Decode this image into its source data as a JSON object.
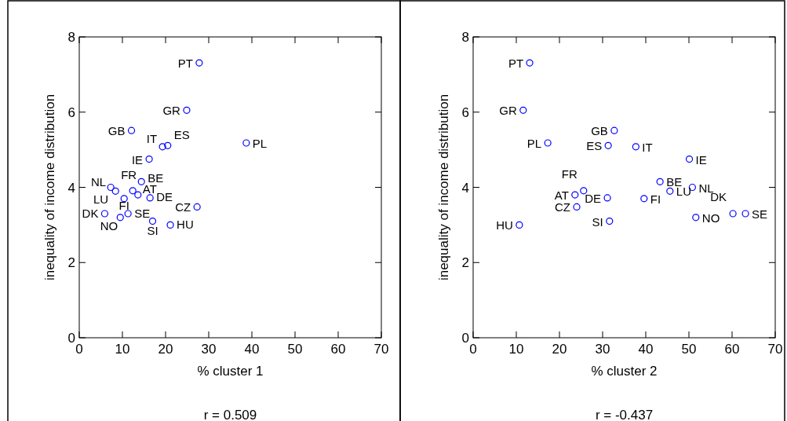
{
  "chart_data": [
    {
      "type": "scatter",
      "xlabel": "% cluster 1",
      "ylabel": "inequality of income distribution",
      "xlim": [
        0,
        70
      ],
      "ylim": [
        0,
        8
      ],
      "xticks": [
        0,
        10,
        20,
        30,
        40,
        50,
        60,
        70
      ],
      "yticks": [
        0,
        2,
        4,
        6,
        8
      ],
      "marker": "circle",
      "color": "#0000ff",
      "x": [
        27.8,
        24.9,
        12.1,
        38.7,
        20.5,
        19.3,
        16.2,
        12.4,
        14.4,
        7.3,
        8.4,
        13.6,
        16.4,
        10.4,
        27.3,
        17.0,
        21.1,
        9.5,
        5.9,
        11.3
      ],
      "values": [
        7.31,
        6.05,
        5.51,
        5.18,
        5.11,
        5.08,
        4.75,
        3.91,
        4.15,
        4.0,
        3.9,
        3.8,
        3.72,
        3.7,
        3.48,
        3.1,
        3.0,
        3.2,
        3.3,
        3.3
      ],
      "value_labels": [
        "PT",
        "GR",
        "GB",
        "PL",
        "ES",
        "IT",
        "IE",
        "FR",
        "BE",
        "NL",
        "LU",
        "AT",
        "DE",
        "FI",
        "CZ",
        "SI",
        "HU",
        "NO",
        "DK",
        "SE"
      ],
      "annotations": [
        "r = 0.509"
      ]
    },
    {
      "type": "scatter",
      "xlabel": "% cluster 2",
      "ylabel": "inequality of income distribution",
      "xlim": [
        0,
        70
      ],
      "ylim": [
        0,
        8
      ],
      "xticks": [
        0,
        10,
        20,
        30,
        40,
        50,
        60,
        70
      ],
      "yticks": [
        0,
        2,
        4,
        6,
        8
      ],
      "marker": "circle",
      "color": "#0000ff",
      "x": [
        13.1,
        11.6,
        32.7,
        17.3,
        31.3,
        37.7,
        50.1,
        25.6,
        43.3,
        50.8,
        45.6,
        23.6,
        31.1,
        39.6,
        24.0,
        31.6,
        10.7,
        51.6,
        60.2,
        63.1
      ],
      "values": [
        7.31,
        6.05,
        5.51,
        5.18,
        5.11,
        5.08,
        4.75,
        3.91,
        4.15,
        4.0,
        3.9,
        3.8,
        3.72,
        3.7,
        3.48,
        3.1,
        3.0,
        3.2,
        3.3,
        3.3
      ],
      "value_labels": [
        "PT",
        "GR",
        "GB",
        "PL",
        "ES",
        "IT",
        "IE",
        "FR",
        "BE",
        "NL",
        "LU",
        "AT",
        "DE",
        "FI",
        "CZ",
        "SI",
        "HU",
        "NO",
        "DK",
        "SE"
      ],
      "annotations": [
        "r = -0.437"
      ]
    }
  ]
}
